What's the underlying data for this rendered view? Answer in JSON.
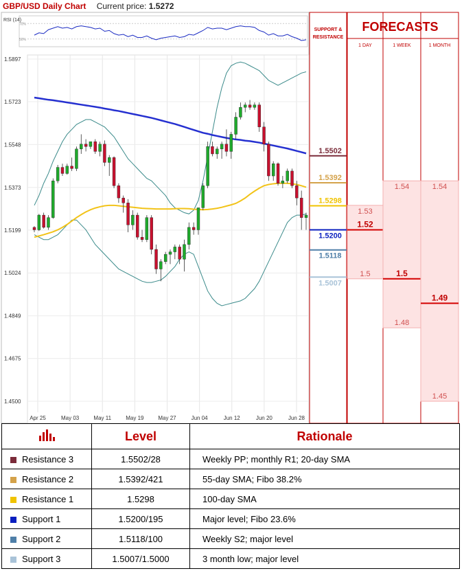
{
  "header": {
    "title": "GBP/USD Daily Chart",
    "price_label": "Current price:",
    "price_value": "1.5272"
  },
  "chart_data": {
    "type": "candlestick",
    "title": "GBP/USD Daily Chart",
    "y_ticks": [
      "1.5897",
      "1.5723",
      "1.5548",
      "1.5373",
      "1.5199",
      "1.5024",
      "1.4849",
      "1.4675",
      "1.4500"
    ],
    "ylim": [
      1.45,
      1.5897
    ],
    "x_ticks": [
      "Apr 25",
      "May 03",
      "May 11",
      "May 19",
      "May 27",
      "Jun 04",
      "Jun 12",
      "Jun 20",
      "Jun 28"
    ],
    "candles": [
      [
        1.521,
        1.5215,
        1.519,
        1.52
      ],
      [
        1.52,
        1.5265,
        1.5195,
        1.526
      ],
      [
        1.526,
        1.527,
        1.5205,
        1.521
      ],
      [
        1.521,
        1.526,
        1.52,
        1.525
      ],
      [
        1.525,
        1.541,
        1.5245,
        1.54
      ],
      [
        1.54,
        1.5465,
        1.539,
        1.5455
      ],
      [
        1.5455,
        1.547,
        1.542,
        1.543
      ],
      [
        1.543,
        1.547,
        1.5425,
        1.546
      ],
      [
        1.546,
        1.5495,
        1.544,
        1.545
      ],
      [
        1.545,
        1.554,
        1.544,
        1.553
      ],
      [
        1.553,
        1.559,
        1.551,
        1.555
      ],
      [
        1.555,
        1.557,
        1.552,
        1.554
      ],
      [
        1.554,
        1.556,
        1.553,
        1.556
      ],
      [
        1.556,
        1.557,
        1.551,
        1.552
      ],
      [
        1.552,
        1.556,
        1.55,
        1.555
      ],
      [
        1.555,
        1.5565,
        1.546,
        1.5475
      ],
      [
        1.5475,
        1.5505,
        1.542,
        1.5495
      ],
      [
        1.5495,
        1.55,
        1.537,
        1.538
      ],
      [
        1.538,
        1.539,
        1.531,
        1.533
      ],
      [
        1.533,
        1.534,
        1.527,
        1.531
      ],
      [
        1.531,
        1.5325,
        1.519,
        1.522
      ],
      [
        1.522,
        1.528,
        1.52,
        1.526
      ],
      [
        1.526,
        1.527,
        1.516,
        1.517
      ],
      [
        1.517,
        1.52,
        1.515,
        1.516
      ],
      [
        1.516,
        1.526,
        1.515,
        1.525
      ],
      [
        1.525,
        1.526,
        1.51,
        1.512
      ],
      [
        1.512,
        1.514,
        1.502,
        1.504
      ],
      [
        1.504,
        1.508,
        1.499,
        1.507
      ],
      [
        1.507,
        1.511,
        1.506,
        1.51
      ],
      [
        1.51,
        1.512,
        1.506,
        1.511
      ],
      [
        1.511,
        1.514,
        1.508,
        1.513
      ],
      [
        1.513,
        1.514,
        1.506,
        1.508
      ],
      [
        1.508,
        1.516,
        1.503,
        1.514
      ],
      [
        1.514,
        1.523,
        1.512,
        1.521
      ],
      [
        1.521,
        1.523,
        1.518,
        1.52
      ],
      [
        1.52,
        1.529,
        1.518,
        1.529
      ],
      [
        1.529,
        1.539,
        1.528,
        1.538
      ],
      [
        1.538,
        1.556,
        1.537,
        1.554
      ],
      [
        1.554,
        1.556,
        1.55,
        1.551
      ],
      [
        1.551,
        1.554,
        1.549,
        1.553
      ],
      [
        1.553,
        1.556,
        1.549,
        1.555
      ],
      [
        1.555,
        1.561,
        1.55,
        1.552
      ],
      [
        1.552,
        1.56,
        1.549,
        1.559
      ],
      [
        1.559,
        1.568,
        1.557,
        1.566
      ],
      [
        1.566,
        1.572,
        1.565,
        1.57
      ],
      [
        1.57,
        1.572,
        1.568,
        1.571
      ],
      [
        1.571,
        1.573,
        1.569,
        1.57
      ],
      [
        1.57,
        1.572,
        1.569,
        1.571
      ],
      [
        1.571,
        1.572,
        1.56,
        1.562
      ],
      [
        1.562,
        1.564,
        1.552,
        1.555
      ],
      [
        1.555,
        1.556,
        1.54,
        1.542
      ],
      [
        1.542,
        1.548,
        1.54,
        1.547
      ],
      [
        1.547,
        1.5475,
        1.538,
        1.539
      ],
      [
        1.539,
        1.542,
        1.537,
        1.54
      ],
      [
        1.54,
        1.545,
        1.539,
        1.544
      ],
      [
        1.544,
        1.545,
        1.537,
        1.538
      ],
      [
        1.538,
        1.54,
        1.53,
        1.533
      ],
      [
        1.533,
        1.536,
        1.52,
        1.525
      ],
      [
        1.525,
        1.527,
        1.52,
        1.526
      ]
    ],
    "rsi": {
      "label": "RSI (14)",
      "levels": [
        "70%",
        "50%"
      ],
      "values": [
        55,
        58,
        57,
        62,
        64,
        66,
        64,
        65,
        63,
        66,
        67,
        66,
        65,
        63,
        64,
        60,
        61,
        57,
        55,
        56,
        53,
        55,
        52,
        52,
        54,
        51,
        49,
        51,
        52,
        53,
        54,
        52,
        53,
        56,
        55,
        58,
        61,
        65,
        63,
        64,
        64,
        62,
        64,
        66,
        67,
        66,
        66,
        65,
        61,
        59,
        55,
        57,
        54,
        54,
        56,
        53,
        51,
        48,
        49
      ],
      "ylim": [
        40,
        80
      ]
    },
    "sma_100": [
      1.574,
      1.5737,
      1.5734,
      1.5731,
      1.5729,
      1.5726,
      1.5723,
      1.572,
      1.5717,
      1.5714,
      1.5711,
      1.5708,
      1.5705,
      1.5702,
      1.5699,
      1.5695,
      1.5692,
      1.5688,
      1.5685,
      1.5681,
      1.5677,
      1.5673,
      1.5669,
      1.5665,
      1.5661,
      1.5657,
      1.5652,
      1.5647,
      1.5642,
      1.5637,
      1.5632,
      1.5626,
      1.562,
      1.5614,
      1.5608,
      1.5602,
      1.5596,
      1.5592,
      1.5587,
      1.5583,
      1.5579,
      1.5575,
      1.5572,
      1.5569,
      1.5567,
      1.5564,
      1.5562,
      1.5559,
      1.5556,
      1.5552,
      1.5548,
      1.5544,
      1.554,
      1.5536,
      1.5532,
      1.5527,
      1.5522,
      1.5517,
      1.5512
    ],
    "sma_55": [
      1.517,
      1.5175,
      1.518,
      1.5186,
      1.5192,
      1.52,
      1.521,
      1.5222,
      1.5236,
      1.525,
      1.5262,
      1.5273,
      1.5282,
      1.5289,
      1.5294,
      1.5298,
      1.53,
      1.53,
      1.5298,
      1.5296,
      1.5294,
      1.5292,
      1.529,
      1.5288,
      1.5287,
      1.5286,
      1.5285,
      1.5285,
      1.5285,
      1.5285,
      1.5286,
      1.5287,
      1.5287,
      1.5286,
      1.5284,
      1.5283,
      1.5282,
      1.5283,
      1.5285,
      1.5288,
      1.5292,
      1.5297,
      1.5302,
      1.5308,
      1.5318,
      1.533,
      1.5345,
      1.5358,
      1.537,
      1.538,
      1.5385,
      1.5388,
      1.539,
      1.539,
      1.539,
      1.5388,
      1.5385,
      1.538,
      1.5374
    ],
    "bb_upper": [
      1.53,
      1.534,
      1.539,
      1.543,
      1.548,
      1.552,
      1.556,
      1.559,
      1.561,
      1.563,
      1.564,
      1.565,
      1.565,
      1.564,
      1.563,
      1.562,
      1.56,
      1.558,
      1.555,
      1.552,
      1.549,
      1.547,
      1.545,
      1.543,
      1.541,
      1.54,
      1.538,
      1.536,
      1.534,
      1.531,
      1.529,
      1.528,
      1.527,
      1.5265,
      1.528,
      1.532,
      1.54,
      1.55,
      1.56,
      1.57,
      1.578,
      1.584,
      1.587,
      1.588,
      1.5885,
      1.588,
      1.587,
      1.586,
      1.585,
      1.583,
      1.581,
      1.58,
      1.579,
      1.58,
      1.581,
      1.582,
      1.583,
      1.584,
      1.5845
    ],
    "bb_lower": [
      1.518,
      1.517,
      1.516,
      1.516,
      1.517,
      1.518,
      1.52,
      1.522,
      1.524,
      1.524,
      1.522,
      1.52,
      1.517,
      1.514,
      1.512,
      1.51,
      1.508,
      1.506,
      1.504,
      1.503,
      1.502,
      1.501,
      1.5,
      1.499,
      1.4985,
      1.4985,
      1.499,
      1.4995,
      1.501,
      1.503,
      1.505,
      1.508,
      1.51,
      1.511,
      1.51,
      1.505,
      1.5,
      1.495,
      1.492,
      1.49,
      1.489,
      1.4895,
      1.49,
      1.4905,
      1.491,
      1.492,
      1.494,
      1.496,
      1.499,
      1.503,
      1.507,
      1.511,
      1.515,
      1.519,
      1.523,
      1.525,
      1.526,
      1.526,
      1.5265
    ]
  },
  "sr": {
    "header": "SUPPORT & RESISTANCE",
    "levels": [
      {
        "name": "Resistance 3",
        "value": 1.5502,
        "label": "1.5502",
        "color": "#7b2c3a"
      },
      {
        "name": "Resistance 2",
        "value": 1.5392,
        "label": "1.5392",
        "color": "#d4a24a"
      },
      {
        "name": "Resistance 1",
        "value": 1.5298,
        "label": "1.5298",
        "color": "#f0c300"
      },
      {
        "name": "Support 1",
        "value": 1.52,
        "label": "1.5200",
        "color": "#0a1fbf"
      },
      {
        "name": "Support 2",
        "value": 1.5118,
        "label": "1.5118",
        "color": "#4f7fa8"
      },
      {
        "name": "Support 3",
        "value": 1.5007,
        "label": "1.5007",
        "color": "#a9c3d8"
      }
    ]
  },
  "forecasts": {
    "title": "FORECASTS",
    "columns": [
      {
        "label": "1 DAY",
        "hi": 1.53,
        "mid": 1.52,
        "lo": 1.5,
        "labels": [
          "1.53",
          "1.52",
          "1.5"
        ],
        "bold": "1.52"
      },
      {
        "label": "1 WEEK",
        "hi": 1.54,
        "mid": 1.5,
        "lo": 1.48,
        "labels": [
          "1.54",
          "1.5",
          "1.48"
        ],
        "bold": "1.5"
      },
      {
        "label": "1 MONTH",
        "hi": 1.54,
        "mid": 1.49,
        "lo": 1.45,
        "labels": [
          "1.54",
          "1.49",
          "1.45"
        ],
        "bold": "1.49"
      }
    ]
  },
  "table": {
    "headers": [
      "",
      "Level",
      "Rationale"
    ],
    "rows": [
      {
        "name": "Resistance 3",
        "level": "1.5502/28",
        "rationale": "Weekly PP; monthly R1; 20-day SMA",
        "color": "#7b2c3a"
      },
      {
        "name": "Resistance 2",
        "level": "1.5392/421",
        "rationale": "55-day SMA; Fibo 38.2%",
        "color": "#d4a24a"
      },
      {
        "name": "Resistance 1",
        "level": "1.5298",
        "rationale": "100-day SMA",
        "color": "#f0c300"
      },
      {
        "name": "Support 1",
        "level": "1.5200/195",
        "rationale": "Major level; Fibo 23.6%",
        "color": "#0a1fbf"
      },
      {
        "name": "Support 2",
        "level": "1.5118/100",
        "rationale": "Weekly S2; major level",
        "color": "#4f7fa8"
      },
      {
        "name": "Support 3",
        "level": "1.5007/1.5000",
        "rationale": "3 month low; major level",
        "color": "#a9c3d8"
      }
    ]
  }
}
